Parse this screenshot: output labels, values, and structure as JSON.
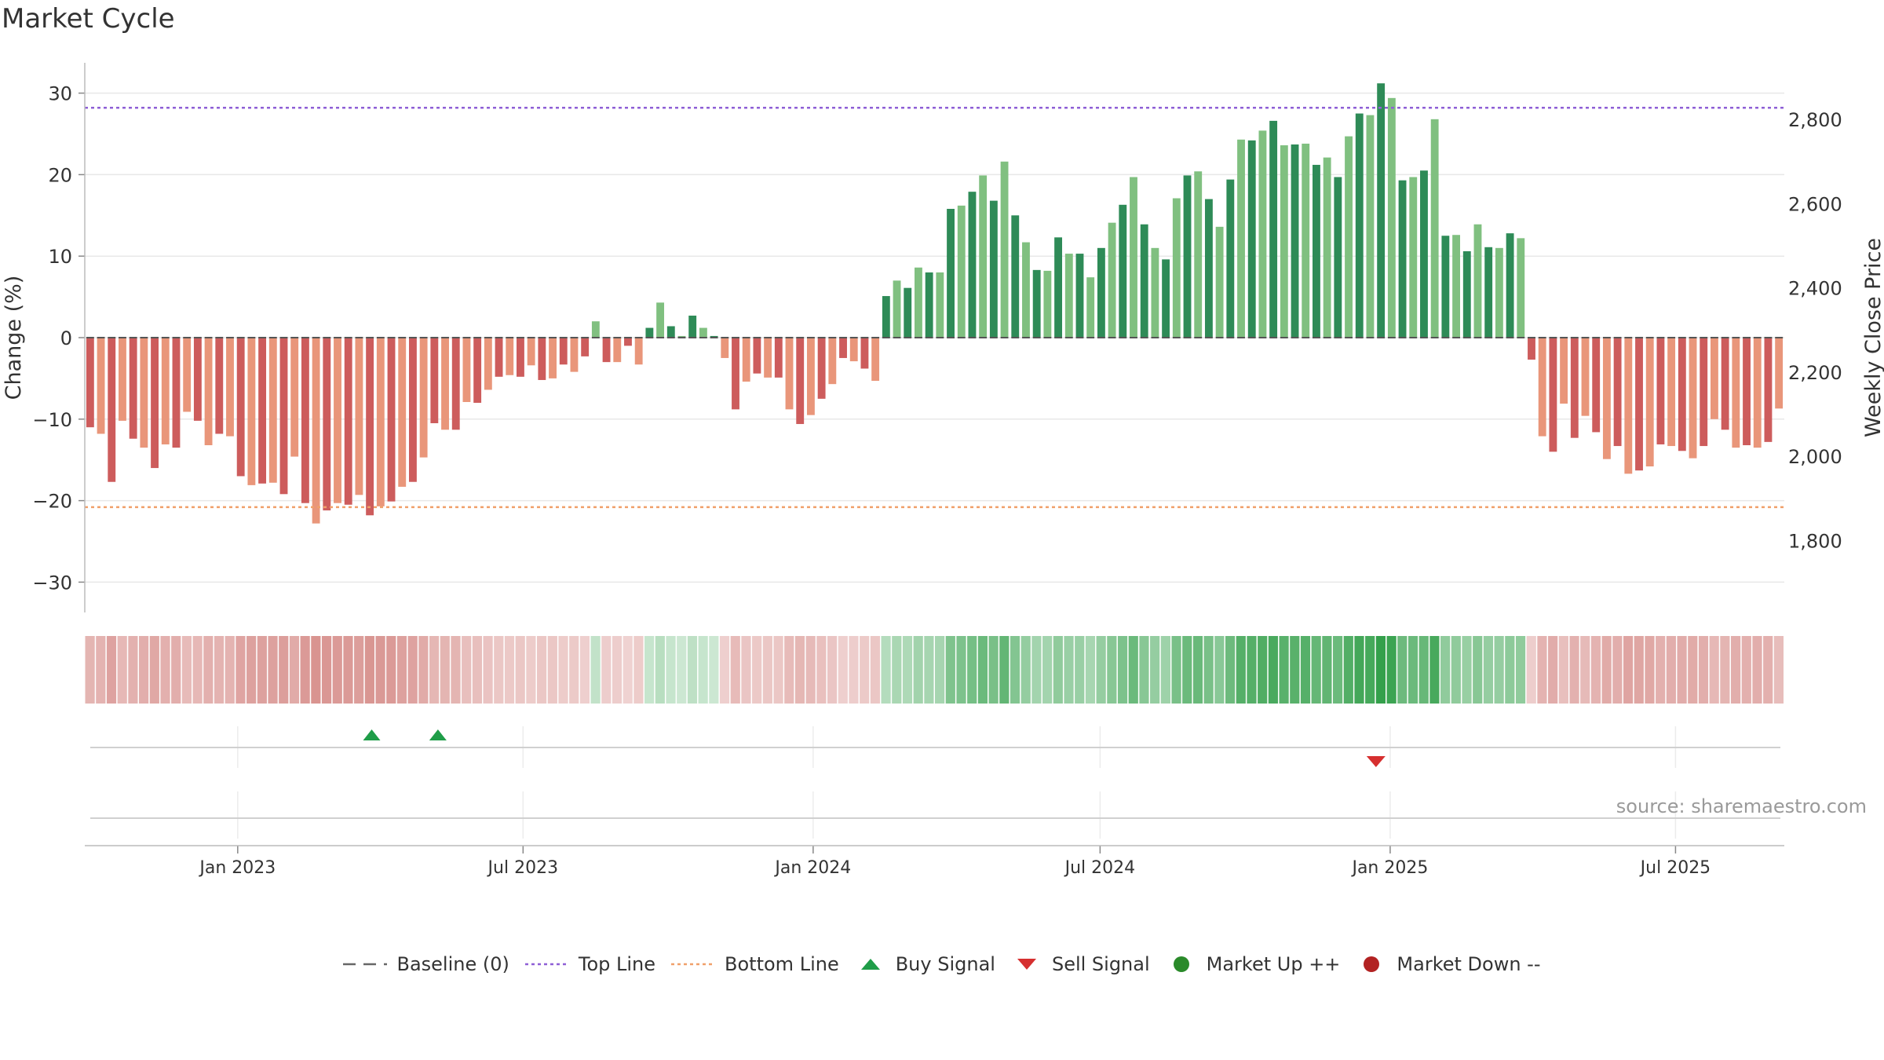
{
  "header": {
    "title": "Market Cycle"
  },
  "source_text": "source: sharemaestro.com",
  "legend": {
    "baseline": "Baseline (0)",
    "top_line": "Top Line",
    "bottom_line": "Bottom Line",
    "buy": "Buy Signal",
    "sell": "Sell Signal",
    "market_up": "Market Up ++",
    "market_down": "Market Down --"
  },
  "colors": {
    "top_line": "#8e5fd6",
    "bottom_line": "#f0a06a",
    "buy": "#1f9d48",
    "sell": "#d62f2f",
    "market_up": "#2a8a2a",
    "market_down": "#b22222",
    "baseline": "#666666"
  },
  "chart_data": {
    "type": "bar",
    "title": "Market Cycle",
    "ylabel": "Change (%)",
    "y2label": "Weekly Close Price",
    "ylim": [
      -33,
      34
    ],
    "y2lim": [
      1640,
      2900
    ],
    "yticks": [
      30,
      20,
      10,
      0,
      -10,
      -20,
      -30
    ],
    "y2ticks": [
      2800,
      2600,
      2400,
      2200,
      2000,
      1800
    ],
    "top_line": 28.2,
    "bottom_line": -20.8,
    "baseline": 0,
    "x_start": "2022-09-26",
    "x_end": "2025-09-08",
    "xticks": [
      {
        "date": "2023-01-01",
        "label": "Jan 2023"
      },
      {
        "date": "2023-07-01",
        "label": "Jul 2023"
      },
      {
        "date": "2024-01-01",
        "label": "Jan 2024"
      },
      {
        "date": "2024-07-01",
        "label": "Jul 2024"
      },
      {
        "date": "2025-01-01",
        "label": "Jan 2025"
      },
      {
        "date": "2025-07-01",
        "label": "Jul 2025"
      }
    ],
    "values": [
      -11,
      -11.8,
      -17.7,
      -10.2,
      -12.4,
      -13.5,
      -16,
      -13.1,
      -13.5,
      -9.1,
      -10.2,
      -13.2,
      -11.8,
      -12.1,
      -17,
      -18.1,
      -17.9,
      -17.8,
      -19.2,
      -14.6,
      -20.3,
      -22.8,
      -21.2,
      -20.3,
      -20.5,
      -19.3,
      -21.8,
      -20.7,
      -20.1,
      -18.3,
      -17.7,
      -14.7,
      -10.5,
      -11.3,
      -11.3,
      -7.9,
      -8,
      -6.4,
      -4.8,
      -4.6,
      -4.8,
      -3.4,
      -5.2,
      -5,
      -3.3,
      -4.2,
      -2.3,
      2,
      -3,
      -3,
      -1,
      -3.3,
      1.2,
      4.3,
      1.4,
      0.2,
      2.7,
      1.2,
      0.2,
      -2.5,
      -8.8,
      -5.4,
      -4.4,
      -4.9,
      -4.9,
      -8.8,
      -10.6,
      -9.5,
      -7.5,
      -5.7,
      -2.5,
      -2.9,
      -3.8,
      -5.3,
      5.1,
      7,
      6.1,
      8.6,
      8,
      8,
      15.8,
      16.2,
      17.9,
      19.9,
      16.8,
      21.6,
      15,
      11.7,
      8.3,
      8.2,
      12.3,
      10.3,
      10.3,
      7.4,
      11,
      14.1,
      16.3,
      19.7,
      13.9,
      11,
      9.6,
      17.1,
      19.9,
      20.4,
      17,
      13.6,
      19.4,
      24.3,
      24.2,
      25.4,
      26.6,
      23.6,
      23.7,
      23.8,
      21.2,
      22.1,
      19.7,
      24.7,
      27.5,
      27.3,
      31.2,
      29.4,
      19.3,
      19.7,
      20.5,
      26.8,
      12.5,
      12.6,
      10.6,
      13.9,
      11.1,
      11,
      12.8,
      12.2,
      -2.7,
      -12.1,
      -14,
      -8.1,
      -12.3,
      -9.6,
      -11.6,
      -14.9,
      -13.3,
      -16.7,
      -16.3,
      -15.8,
      -13.1,
      -13.3,
      -13.9,
      -14.8,
      -13.3,
      -10,
      -11.3,
      -13.5,
      -13.2,
      -13.5,
      -12.8,
      -8.7
    ],
    "buy_signals": [
      "2023-03-27",
      "2023-05-08"
    ],
    "sell_signals": [
      "2024-12-23"
    ],
    "grid": true,
    "legend_position": "bottom-center"
  }
}
